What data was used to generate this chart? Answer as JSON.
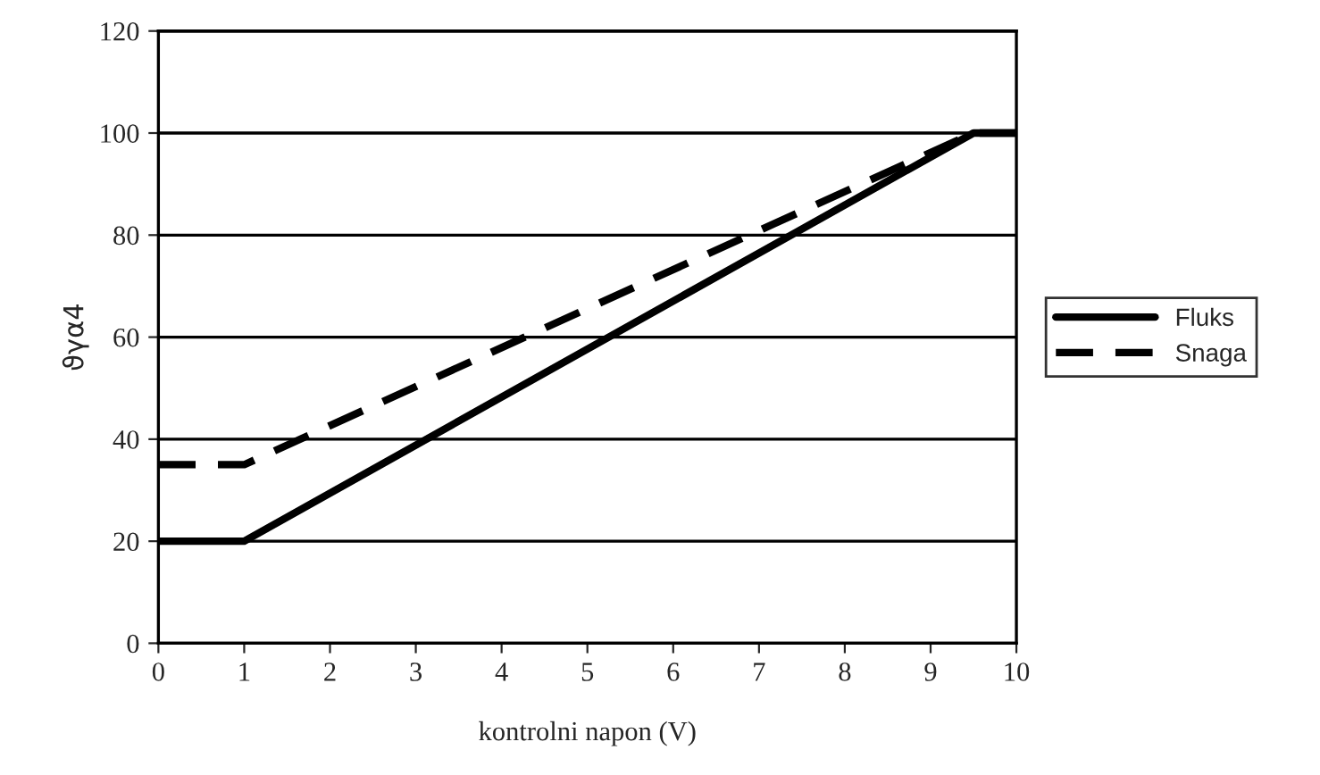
{
  "chart_data": {
    "type": "line",
    "xlabel": "kontrolni napon (V)",
    "ylabel": "ϑγα4",
    "x": [
      0,
      1,
      9.5,
      10
    ],
    "series": [
      {
        "name": "Fluks",
        "color": "#000000",
        "values": [
          20,
          20,
          100,
          100
        ],
        "line_style": "solid"
      },
      {
        "name": "Snaga",
        "color": "#000000",
        "values": [
          35,
          35,
          100,
          100
        ],
        "line_style": "dashed"
      }
    ],
    "xlim": [
      0,
      10
    ],
    "xticks": [
      0,
      1,
      2,
      3,
      4,
      5,
      6,
      7,
      8,
      9,
      10
    ],
    "ylim": [
      0,
      120
    ],
    "yticks": [
      0,
      20,
      40,
      60,
      80,
      100,
      120
    ],
    "grid": "y",
    "legend": "right",
    "marker": "none"
  }
}
